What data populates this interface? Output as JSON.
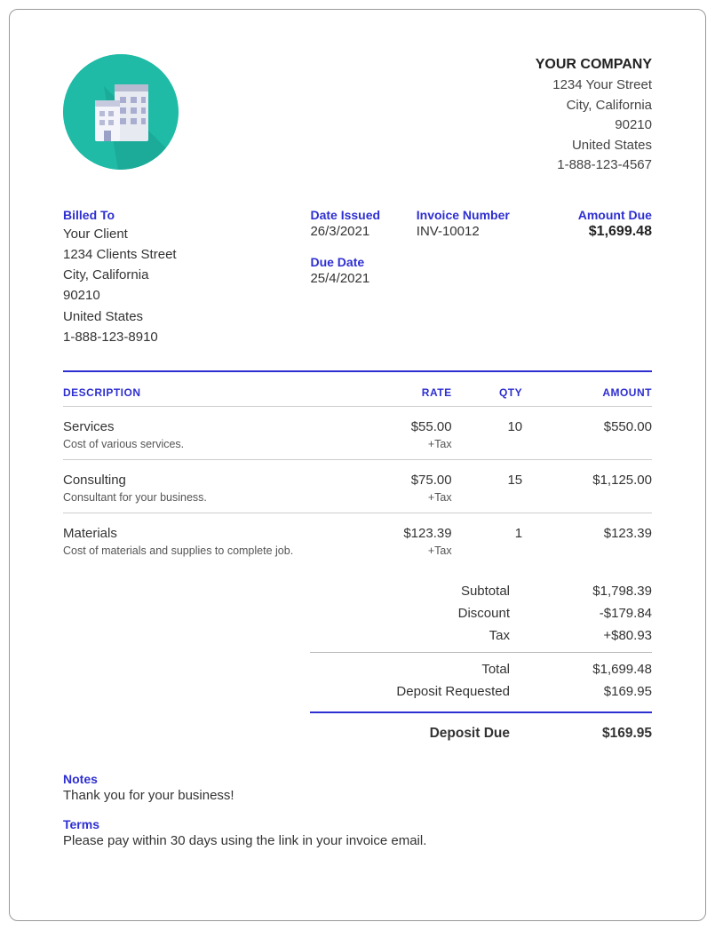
{
  "company": {
    "name": "YOUR COMPANY",
    "street": "1234 Your Street",
    "city": "City, California",
    "zip": "90210",
    "country": "United States",
    "phone": "1-888-123-4567"
  },
  "logo": {
    "bg": "#1fbba6"
  },
  "billed_to": {
    "label": "Billed To",
    "name": "Your Client",
    "street": "1234 Clients Street",
    "city": "City, California",
    "zip": "90210",
    "country": "United States",
    "phone": "1-888-123-8910"
  },
  "dates": {
    "issued_label": "Date Issued",
    "issued": "26/3/2021",
    "due_label": "Due Date",
    "due": "25/4/2021"
  },
  "invoice": {
    "number_label": "Invoice Number",
    "number": "INV-10012",
    "amount_due_label": "Amount Due",
    "amount_due": "$1,699.48"
  },
  "columns": {
    "description": "DESCRIPTION",
    "rate": "RATE",
    "qty": "QTY",
    "amount": "AMOUNT"
  },
  "items": [
    {
      "name": "Services",
      "sub": "Cost of various services.",
      "rate": "$55.00",
      "tax": "+Tax",
      "qty": "10",
      "amount": "$550.00"
    },
    {
      "name": "Consulting",
      "sub": "Consultant for your business.",
      "rate": "$75.00",
      "tax": "+Tax",
      "qty": "15",
      "amount": "$1,125.00"
    },
    {
      "name": "Materials",
      "sub": "Cost of materials and supplies to complete job.",
      "rate": "$123.39",
      "tax": "+Tax",
      "qty": "1",
      "amount": "$123.39"
    }
  ],
  "totals": {
    "subtotal_label": "Subtotal",
    "subtotal": "$1,798.39",
    "discount_label": "Discount",
    "discount": "-$179.84",
    "tax_label": "Tax",
    "tax": "+$80.93",
    "total_label": "Total",
    "total": "$1,699.48",
    "deposit_req_label": "Deposit Requested",
    "deposit_req": "$169.95",
    "deposit_due_label": "Deposit Due",
    "deposit_due": "$169.95"
  },
  "notes": {
    "label": "Notes",
    "text": "Thank you for your business!"
  },
  "terms": {
    "label": "Terms",
    "text": "Please pay within 30 days using the link in your invoice email."
  },
  "colors": {
    "accent": "#2e2fd0",
    "rule": "#cccccc",
    "text": "#333333"
  }
}
